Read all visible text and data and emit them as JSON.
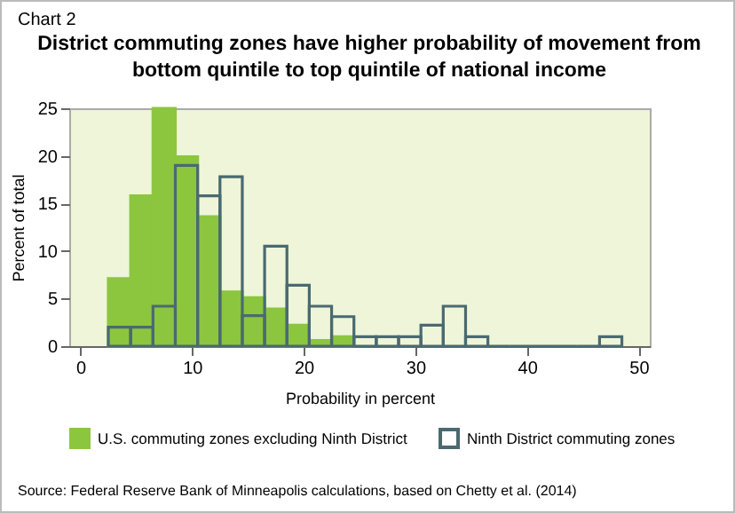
{
  "chart_data": {
    "type": "histogram",
    "title": "District commuting zones have higher probability of movement from bottom quintile to top quintile of national income",
    "xlabel": "Probability in percent",
    "ylabel": "Percent of total",
    "annotations": [
      "Chart 2",
      "Source: Federal Reserve Bank of Minneapolis calculations, based on Chetty et al. (2014)"
    ],
    "bins": [
      2.5,
      4.5,
      6.5,
      8.5,
      10.5,
      12.5,
      14.5,
      16.5,
      18.5,
      20.5,
      22.5,
      24.5,
      26.5,
      28.5,
      30.5,
      32.5,
      34.5,
      36.5,
      38.5,
      40.5,
      42.5,
      44.5,
      46.5,
      48.5
    ],
    "series": [
      {
        "name": "U.S. commuting zones excluding Ninth District",
        "color": "#8cc63f",
        "values": [
          7.1,
          15.8,
          25,
          19.9,
          13.6,
          5.7,
          5.1,
          3.9,
          2.2,
          0.6,
          1.0,
          null,
          null,
          null,
          null,
          null,
          null,
          null,
          null,
          null,
          null,
          null,
          null
        ]
      },
      {
        "name": "Ninth District commuting zones",
        "color": "#4a6a70",
        "values": [
          2,
          2,
          4.2,
          19,
          15.8,
          17.8,
          3.2,
          10.5,
          6.4,
          4.2,
          3.1,
          1,
          1,
          1,
          2.2,
          4.2,
          1,
          0,
          0,
          0,
          0,
          0,
          1
        ]
      }
    ],
    "xlim": [
      -1,
      51
    ],
    "xticks": [
      0,
      10,
      20,
      30,
      40,
      50
    ],
    "ylim": [
      0,
      25
    ],
    "yticks": [
      0,
      5,
      10,
      15,
      20,
      25
    ],
    "grid": false,
    "legend": "bottom"
  }
}
